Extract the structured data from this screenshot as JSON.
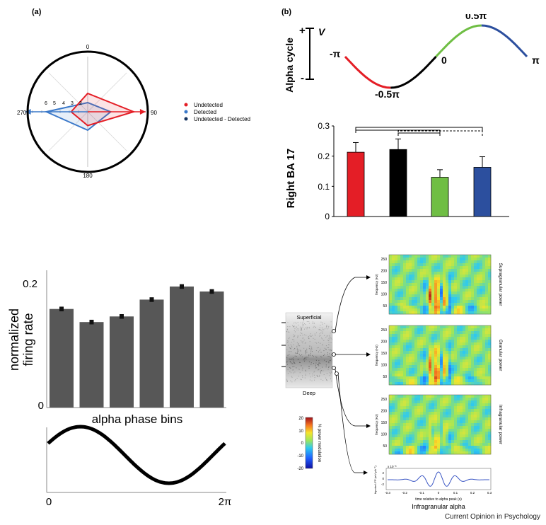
{
  "figure": {
    "credit": "Current Opinion in Psychology",
    "panel_a": {
      "label": "(a)",
      "polar": {
        "angle_labels": [
          "0",
          "90",
          "180",
          "270"
        ],
        "radial_ticks": [
          "6",
          "5",
          "4",
          "3",
          "2"
        ],
        "legend": [
          {
            "label": "Undetected",
            "color": "#e41e26"
          },
          {
            "label": "Detected",
            "color": "#3a78c9"
          },
          {
            "label": "Undetected - Detected",
            "color": "#17345f"
          }
        ]
      },
      "firing_chart": {
        "ylabel_line1": "normalized",
        "ylabel_line2": "firing rate",
        "xlabel": "alpha phase bins",
        "y_ticks": [
          "0",
          "0.2"
        ],
        "wave_x_ticks": [
          "0",
          "2π"
        ]
      }
    },
    "panel_b": {
      "label": "(b)",
      "alpha_cycle": {
        "title": "Alpha cycle",
        "voltage_symbol": "V",
        "plus": "+",
        "minus": "-",
        "phase_labels": [
          "-π",
          "-0.5π",
          "0",
          "0.5π",
          "π"
        ],
        "segment_colors": [
          "#e41e26",
          "#000000",
          "#6fbe44",
          "#2c4f9e"
        ]
      },
      "ba17_chart": {
        "ylabel": "Right BA 17",
        "y_ticks": [
          "0",
          "0.1",
          "0.2",
          "0.3"
        ]
      },
      "laminar": {
        "superficial": "Superficial",
        "deep": "Deep",
        "colorbar_label": "% power modulation",
        "colorbar_ticks": [
          "20",
          "10",
          "0",
          "-10",
          "-20"
        ],
        "spectrogram_ylabel": "frequency (Hz)",
        "spectrogram_ticks": [
          "250",
          "200",
          "150",
          "100",
          "50"
        ],
        "spectrograms": [
          {
            "title": "Supragranular power"
          },
          {
            "title": "Granular power"
          },
          {
            "title": "Infragranular power"
          }
        ],
        "alpha_trace": {
          "ylabel": "bipolar LFP (mV µA⁻¹)",
          "scale": "x 10⁻³",
          "y_ticks": [
            "2",
            "0",
            "-2"
          ],
          "x_ticks": [
            "-0.3",
            "-0.2",
            "-0.1",
            "0",
            "0.1",
            "0.2",
            "0.3"
          ],
          "xlabel": "time relative to alpha peak (s)",
          "title": "Infragranular alpha"
        }
      }
    }
  },
  "chart_data": [
    {
      "type": "polar",
      "title": "",
      "angles_deg": [
        0,
        90,
        180,
        270
      ],
      "rmax": 6,
      "series": [
        {
          "name": "Undetected",
          "color": "#e41e26",
          "values": [
            2,
            5,
            1.5,
            1.8
          ]
        },
        {
          "name": "Detected",
          "color": "#3a78c9",
          "values": [
            1,
            2.5,
            2,
            4.5
          ]
        }
      ]
    },
    {
      "type": "bar",
      "title": "",
      "ylabel": "normalized firing rate",
      "xlabel": "alpha phase bins",
      "ylim": [
        0,
        0.22
      ],
      "values": [
        0.158,
        0.137,
        0.146,
        0.173,
        0.194,
        0.186
      ],
      "errors": [
        0.002,
        0.002,
        0.002,
        0.002,
        0.002,
        0.002
      ],
      "color": "#575757"
    },
    {
      "type": "bar",
      "title": "",
      "ylabel": "Right BA 17",
      "ylim": [
        0,
        0.3
      ],
      "values": [
        0.213,
        0.222,
        0.13,
        0.163
      ],
      "errors": [
        0.032,
        0.035,
        0.025,
        0.035
      ],
      "colors": [
        "#e41e26",
        "#000000",
        "#6fbe44",
        "#2c4f9e"
      ]
    }
  ]
}
